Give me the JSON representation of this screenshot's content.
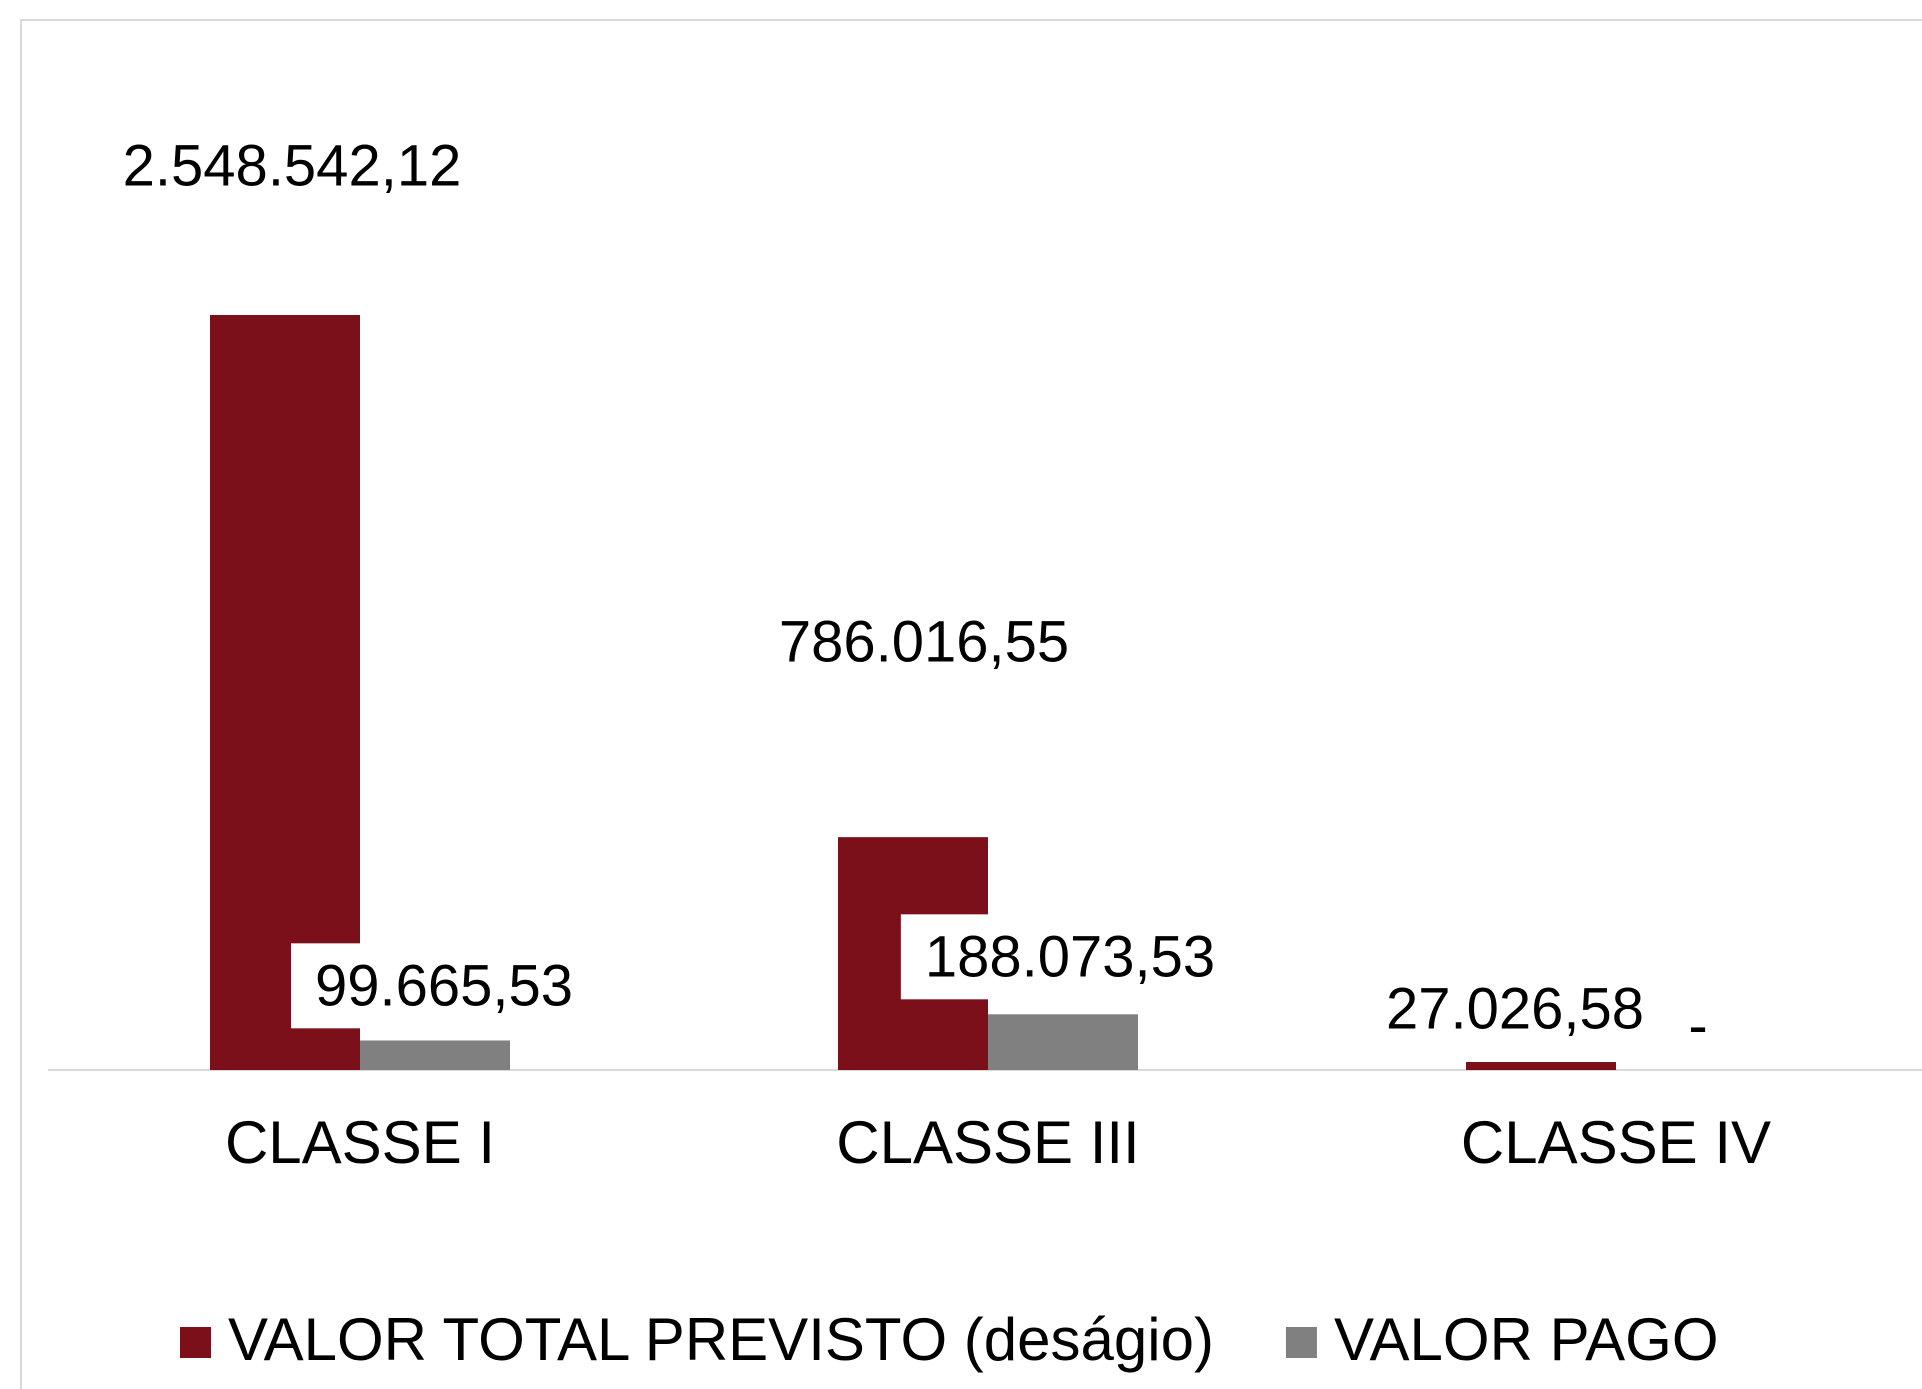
{
  "chart_data": {
    "type": "bar",
    "categories": [
      "CLASSE I",
      "CLASSE III",
      "CLASSE IV"
    ],
    "series": [
      {
        "name": "VALOR TOTAL PREVISTO (deságio)",
        "color": "#7b0f1a",
        "values": [
          2548542.12,
          786016.55,
          27026.58
        ],
        "value_labels": [
          "2.548.542,12",
          "786.016,55",
          "27.026,58"
        ]
      },
      {
        "name": "VALOR PAGO",
        "color": "#808080",
        "values": [
          99665.53,
          188073.53,
          0
        ],
        "value_labels": [
          "99.665,53",
          "188.073,53",
          "-"
        ]
      }
    ],
    "legend": "bottom"
  }
}
